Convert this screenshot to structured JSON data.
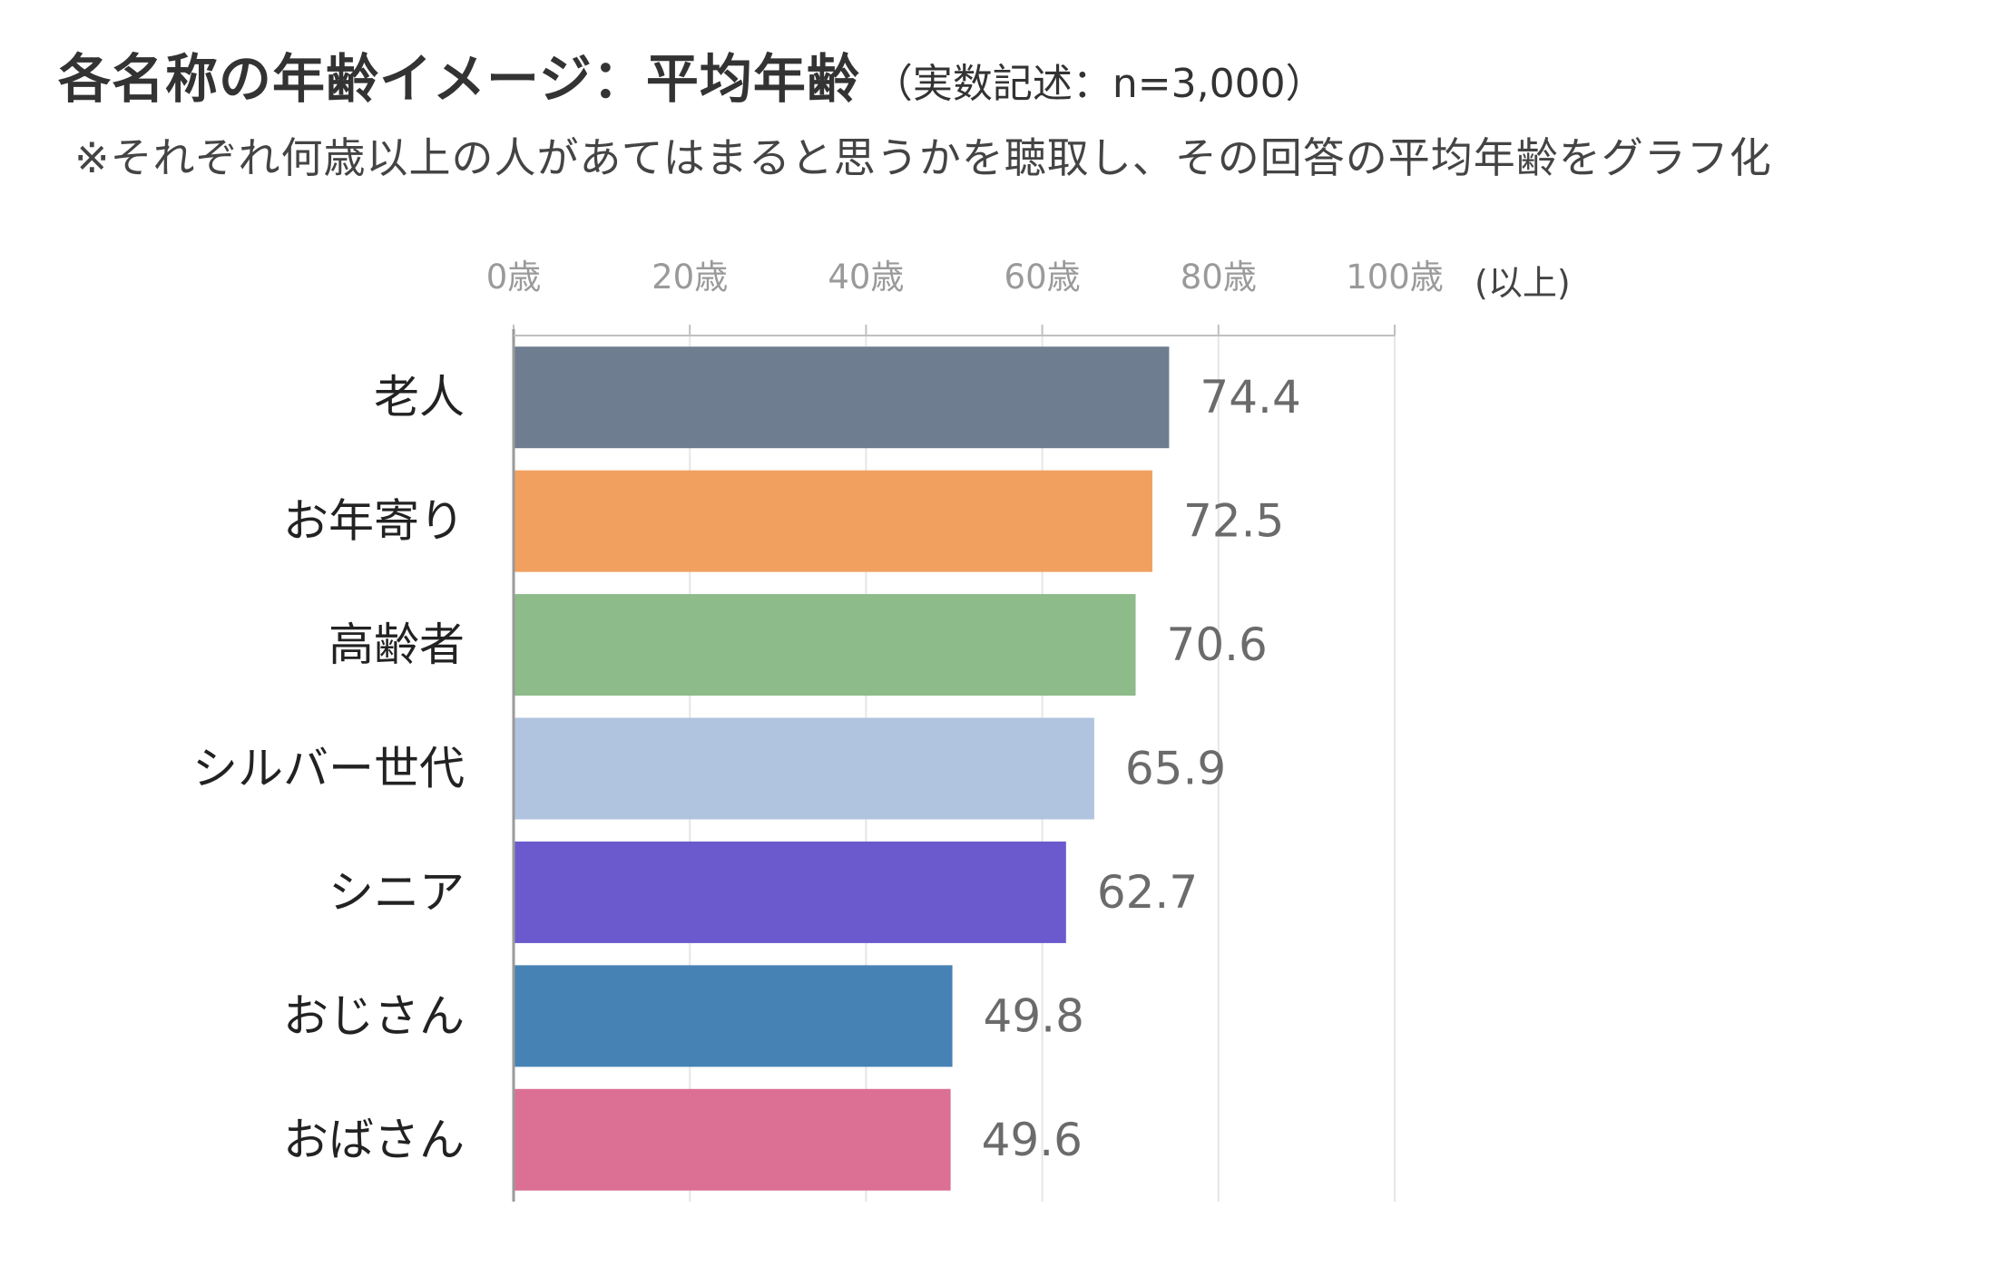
{
  "header": {
    "title": "各名称の年齢イメージ：平均年齢",
    "subtitle": "（実数記述：n=3,000）",
    "note": "※それぞれ何歳以上の人があてはまると思うかを聴取し、その回答の平均年齢をグラフ化"
  },
  "chart_data": {
    "type": "bar",
    "orientation": "horizontal",
    "title": "各名称の年齢イメージ：平均年齢",
    "xlim": [
      0,
      100
    ],
    "x_ticks": [
      0,
      20,
      40,
      60,
      80,
      100
    ],
    "x_tick_labels": [
      "0歳",
      "20歳",
      "40歳",
      "60歳",
      "80歳",
      "100歳"
    ],
    "x_unit": "(以上)",
    "grid": true,
    "categories": [
      "老人",
      "お年寄り",
      "高齢者",
      "シルバー世代",
      "シニア",
      "おじさん",
      "おばさん"
    ],
    "values": [
      74.4,
      72.5,
      70.6,
      65.9,
      62.7,
      49.8,
      49.6
    ],
    "value_labels": [
      "74.4",
      "72.5",
      "70.6",
      "65.9",
      "62.7",
      "49.8",
      "49.6"
    ],
    "colors": [
      "#6E7D90",
      "#F2A060",
      "#8DBB8A",
      "#B0C4DF",
      "#6A5ACD",
      "#4682B4",
      "#DC6F94"
    ]
  }
}
